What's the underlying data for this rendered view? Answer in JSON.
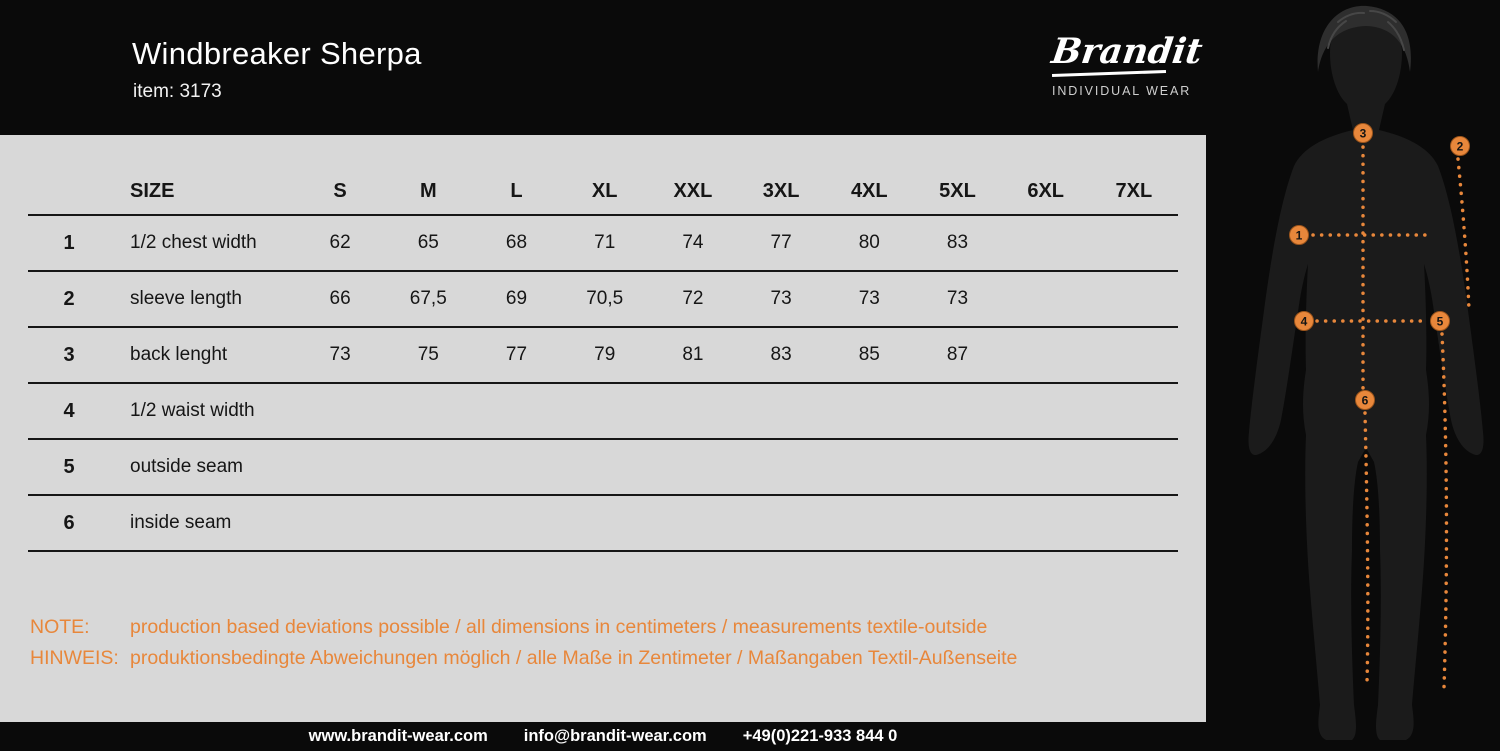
{
  "header": {
    "title": "Windbreaker Sherpa",
    "item_label": "item: 3173",
    "brand": "Brandit",
    "brand_tagline": "INDIVIDUAL WEAR"
  },
  "table": {
    "size_header": "SIZE",
    "columns": [
      "S",
      "M",
      "L",
      "XL",
      "XXL",
      "3XL",
      "4XL",
      "5XL",
      "6XL",
      "7XL"
    ],
    "rows": [
      {
        "num": "1",
        "label": "1/2 chest width",
        "values": [
          "62",
          "65",
          "68",
          "71",
          "74",
          "77",
          "80",
          "83",
          "",
          ""
        ]
      },
      {
        "num": "2",
        "label": "sleeve length",
        "values": [
          "66",
          "67,5",
          "69",
          "70,5",
          "72",
          "73",
          "73",
          "73",
          "",
          ""
        ]
      },
      {
        "num": "3",
        "label": "back lenght",
        "values": [
          "73",
          "75",
          "77",
          "79",
          "81",
          "83",
          "85",
          "87",
          "",
          ""
        ]
      },
      {
        "num": "4",
        "label": "1/2 waist width",
        "values": [
          "",
          "",
          "",
          "",
          "",
          "",
          "",
          "",
          "",
          ""
        ]
      },
      {
        "num": "5",
        "label": "outside seam",
        "values": [
          "",
          "",
          "",
          "",
          "",
          "",
          "",
          "",
          "",
          ""
        ]
      },
      {
        "num": "6",
        "label": "inside seam",
        "values": [
          "",
          "",
          "",
          "",
          "",
          "",
          "",
          "",
          "",
          ""
        ]
      }
    ]
  },
  "notes": {
    "note_label": "NOTE:",
    "note_text": "production based deviations possible / all dimensions in centimeters / measurements textile-outside",
    "hinweis_label": "HINWEIS:",
    "hinweis_text": "produktionsbedingte Abweichungen möglich / alle Maße in Zentimeter / Maßangaben Textil-Außenseite"
  },
  "footer": {
    "website": "www.brandit-wear.com",
    "email": "info@brandit-wear.com",
    "phone": "+49(0)221-933 844 0"
  },
  "figure": {
    "markers": [
      "1",
      "2",
      "3",
      "4",
      "5",
      "6"
    ]
  },
  "colors": {
    "accent_orange": "#E8873B",
    "background_gray": "#D8D8D8",
    "panel_black": "#0A0A0A"
  }
}
